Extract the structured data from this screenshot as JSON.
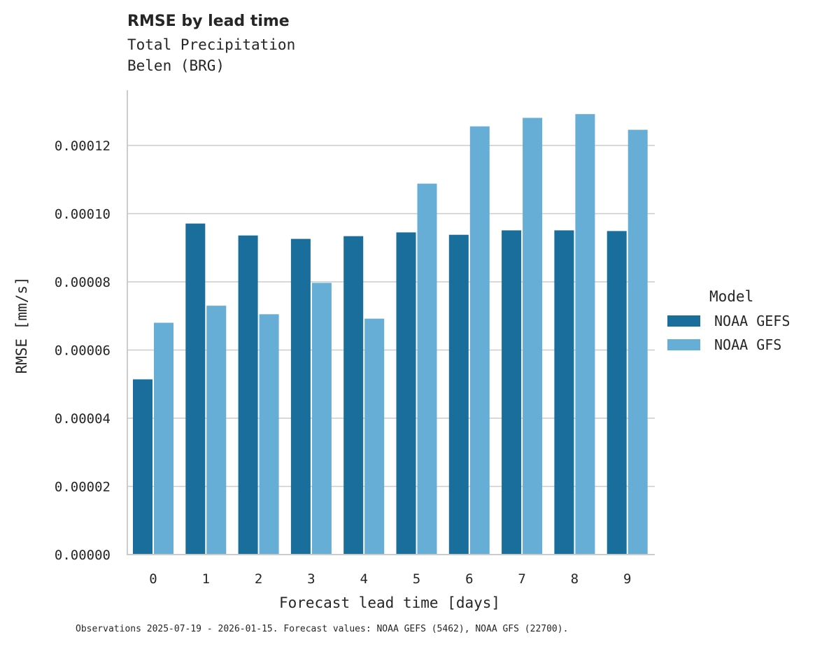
{
  "header": {
    "title": "RMSE by lead time",
    "subtitle_line1": "Total Precipitation",
    "subtitle_line2": "Belen (BRG)"
  },
  "axes": {
    "xlabel": "Forecast lead time [days]",
    "ylabel": "RMSE [mm/s]",
    "yticks": [
      "0.00000",
      "0.00002",
      "0.00004",
      "0.00006",
      "0.00008",
      "0.00010",
      "0.00012"
    ],
    "xticks": [
      "0",
      "1",
      "2",
      "3",
      "4",
      "5",
      "6",
      "7",
      "8",
      "9"
    ]
  },
  "legend": {
    "title": "Model",
    "items": [
      {
        "label": "NOAA GEFS",
        "color": "#1a6e9c"
      },
      {
        "label": "NOAA GFS",
        "color": "#67aed6"
      }
    ]
  },
  "footnote": "Observations 2025-07-19 - 2026-01-15. Forecast values: NOAA GEFS (5462), NOAA GFS (22700).",
  "chart_data": {
    "type": "bar",
    "title": "RMSE by lead time",
    "subtitle": "Total Precipitation / Belen (BRG)",
    "xlabel": "Forecast lead time [days]",
    "ylabel": "RMSE [mm/s]",
    "categories": [
      "0",
      "1",
      "2",
      "3",
      "4",
      "5",
      "6",
      "7",
      "8",
      "9"
    ],
    "series": [
      {
        "name": "NOAA GEFS",
        "color": "#1a6e9c",
        "values": [
          5.14e-05,
          9.71e-05,
          9.36e-05,
          9.26e-05,
          9.34e-05,
          9.45e-05,
          9.38e-05,
          9.51e-05,
          9.51e-05,
          9.49e-05
        ]
      },
      {
        "name": "NOAA GFS",
        "color": "#67aed6",
        "values": [
          6.8e-05,
          7.3e-05,
          7.05e-05,
          7.97e-05,
          6.92e-05,
          0.0001088,
          0.0001256,
          0.0001281,
          0.0001292,
          0.0001246
        ]
      }
    ],
    "ylim": [
      0,
      0.000136
    ],
    "grid": "horizontal",
    "legend_position": "right"
  }
}
